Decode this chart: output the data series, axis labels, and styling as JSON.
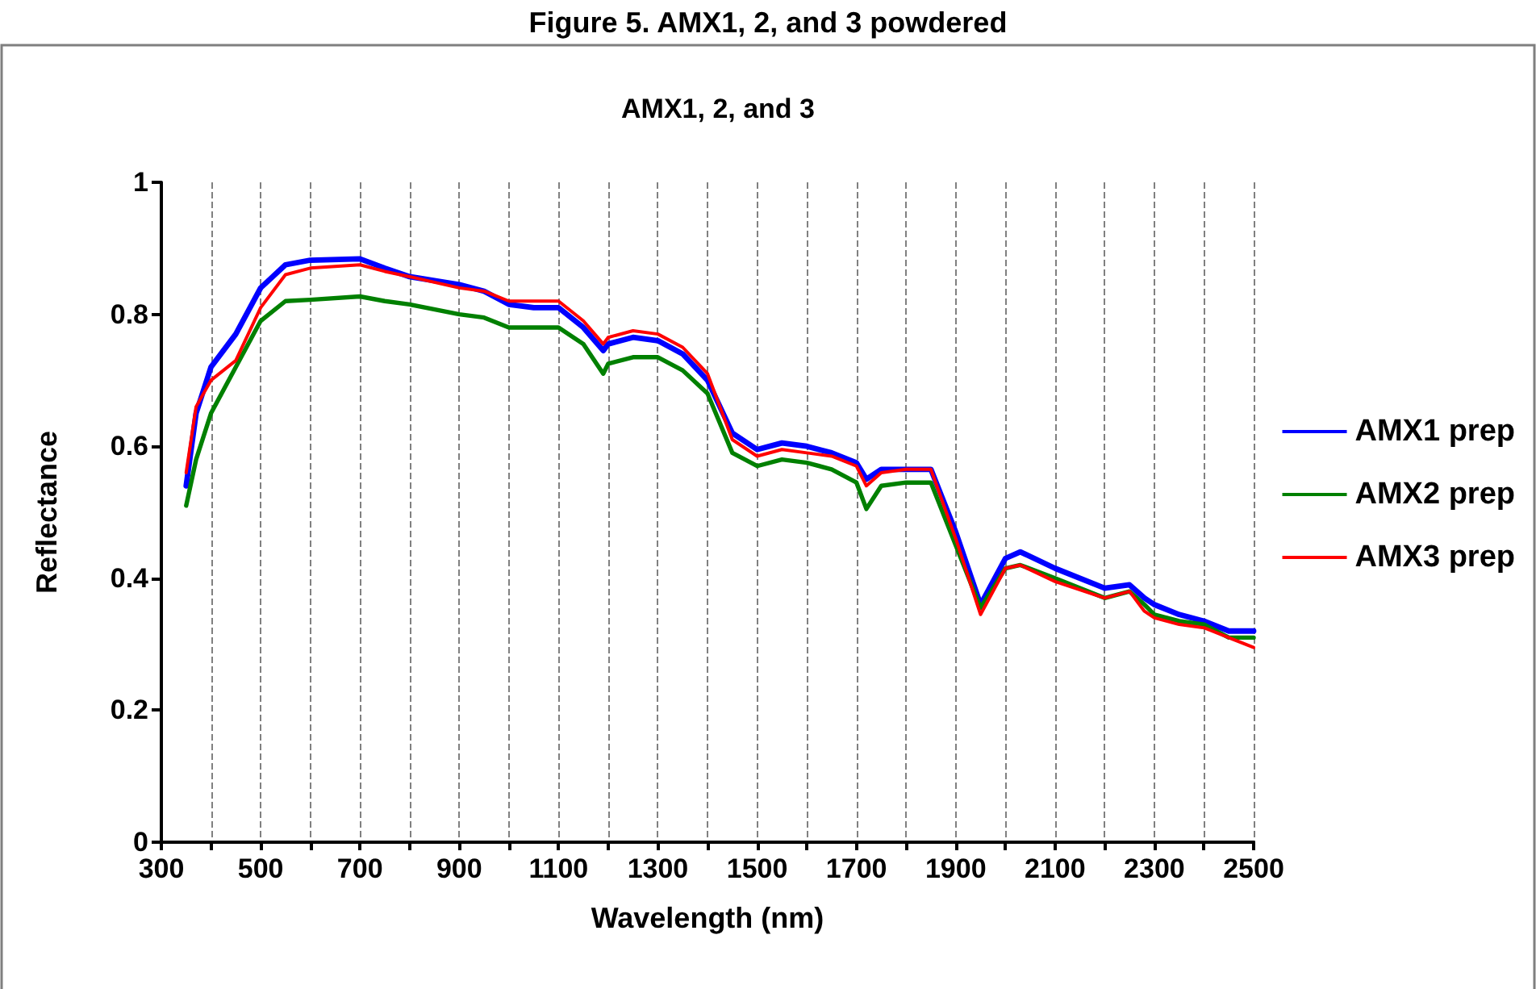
{
  "chart_data": {
    "type": "line",
    "title": "Figure 5. AMX1, 2, and 3 powdered",
    "subtitle": "AMX1, 2, and 3",
    "xlabel": "Wavelength (nm)",
    "ylabel": "Reflectance",
    "x": [
      350,
      370,
      400,
      450,
      500,
      550,
      600,
      700,
      750,
      800,
      900,
      950,
      1000,
      1050,
      1100,
      1150,
      1190,
      1200,
      1250,
      1300,
      1350,
      1400,
      1450,
      1500,
      1550,
      1600,
      1650,
      1700,
      1720,
      1750,
      1800,
      1850,
      1900,
      1950,
      2000,
      2030,
      2100,
      2200,
      2250,
      2280,
      2300,
      2350,
      2400,
      2450,
      2500
    ],
    "series": [
      {
        "name": "AMX1 prep",
        "color": "#0000ff",
        "values": [
          0.54,
          0.65,
          0.72,
          0.77,
          0.84,
          0.875,
          0.882,
          0.884,
          0.87,
          0.857,
          0.845,
          0.835,
          0.815,
          0.81,
          0.81,
          0.78,
          0.745,
          0.755,
          0.765,
          0.76,
          0.74,
          0.7,
          0.62,
          0.595,
          0.605,
          0.6,
          0.59,
          0.575,
          0.55,
          0.565,
          0.565,
          0.565,
          0.47,
          0.36,
          0.43,
          0.44,
          0.415,
          0.385,
          0.39,
          0.37,
          0.36,
          0.345,
          0.335,
          0.32,
          0.32
        ]
      },
      {
        "name": "AMX2 prep",
        "color": "#008000",
        "values": [
          0.51,
          0.58,
          0.65,
          0.72,
          0.79,
          0.82,
          0.822,
          0.827,
          0.82,
          0.815,
          0.8,
          0.795,
          0.78,
          0.78,
          0.78,
          0.755,
          0.71,
          0.725,
          0.735,
          0.735,
          0.715,
          0.68,
          0.59,
          0.57,
          0.58,
          0.575,
          0.565,
          0.545,
          0.505,
          0.54,
          0.545,
          0.545,
          0.45,
          0.355,
          0.415,
          0.42,
          0.4,
          0.37,
          0.38,
          0.36,
          0.345,
          0.335,
          0.33,
          0.31,
          0.31
        ]
      },
      {
        "name": "AMX3 prep",
        "color": "#ff0000",
        "values": [
          0.56,
          0.66,
          0.7,
          0.73,
          0.81,
          0.86,
          0.87,
          0.875,
          0.865,
          0.857,
          0.84,
          0.835,
          0.82,
          0.82,
          0.82,
          0.79,
          0.755,
          0.765,
          0.775,
          0.77,
          0.75,
          0.71,
          0.61,
          0.585,
          0.595,
          0.59,
          0.585,
          0.57,
          0.54,
          0.56,
          0.565,
          0.565,
          0.46,
          0.345,
          0.415,
          0.42,
          0.395,
          0.37,
          0.38,
          0.35,
          0.34,
          0.33,
          0.325,
          0.31,
          0.295
        ]
      }
    ],
    "xlim": [
      300,
      2500
    ],
    "xticks": [
      300,
      {
        "value": 400,
        "label": null
      },
      500,
      {
        "value": 600,
        "label": null
      },
      700,
      {
        "value": 800,
        "label": null
      },
      900,
      {
        "value": 1000,
        "label": null
      },
      1100,
      {
        "value": 1200,
        "label": null
      },
      1300,
      {
        "value": 1400,
        "label": null
      },
      1500,
      {
        "value": 1600,
        "label": null
      },
      1700,
      {
        "value": 1800,
        "label": null
      },
      1900,
      {
        "value": 2000,
        "label": null
      },
      2100,
      {
        "value": 2200,
        "label": null
      },
      2300,
      {
        "value": 2400,
        "label": null
      },
      2500
    ],
    "ylim": [
      0,
      1
    ],
    "yticks": [
      0,
      0.2,
      0.4,
      0.6,
      0.8,
      1
    ],
    "grid": "x",
    "legend": "right",
    "marker": "none",
    "line_style": "solid"
  }
}
